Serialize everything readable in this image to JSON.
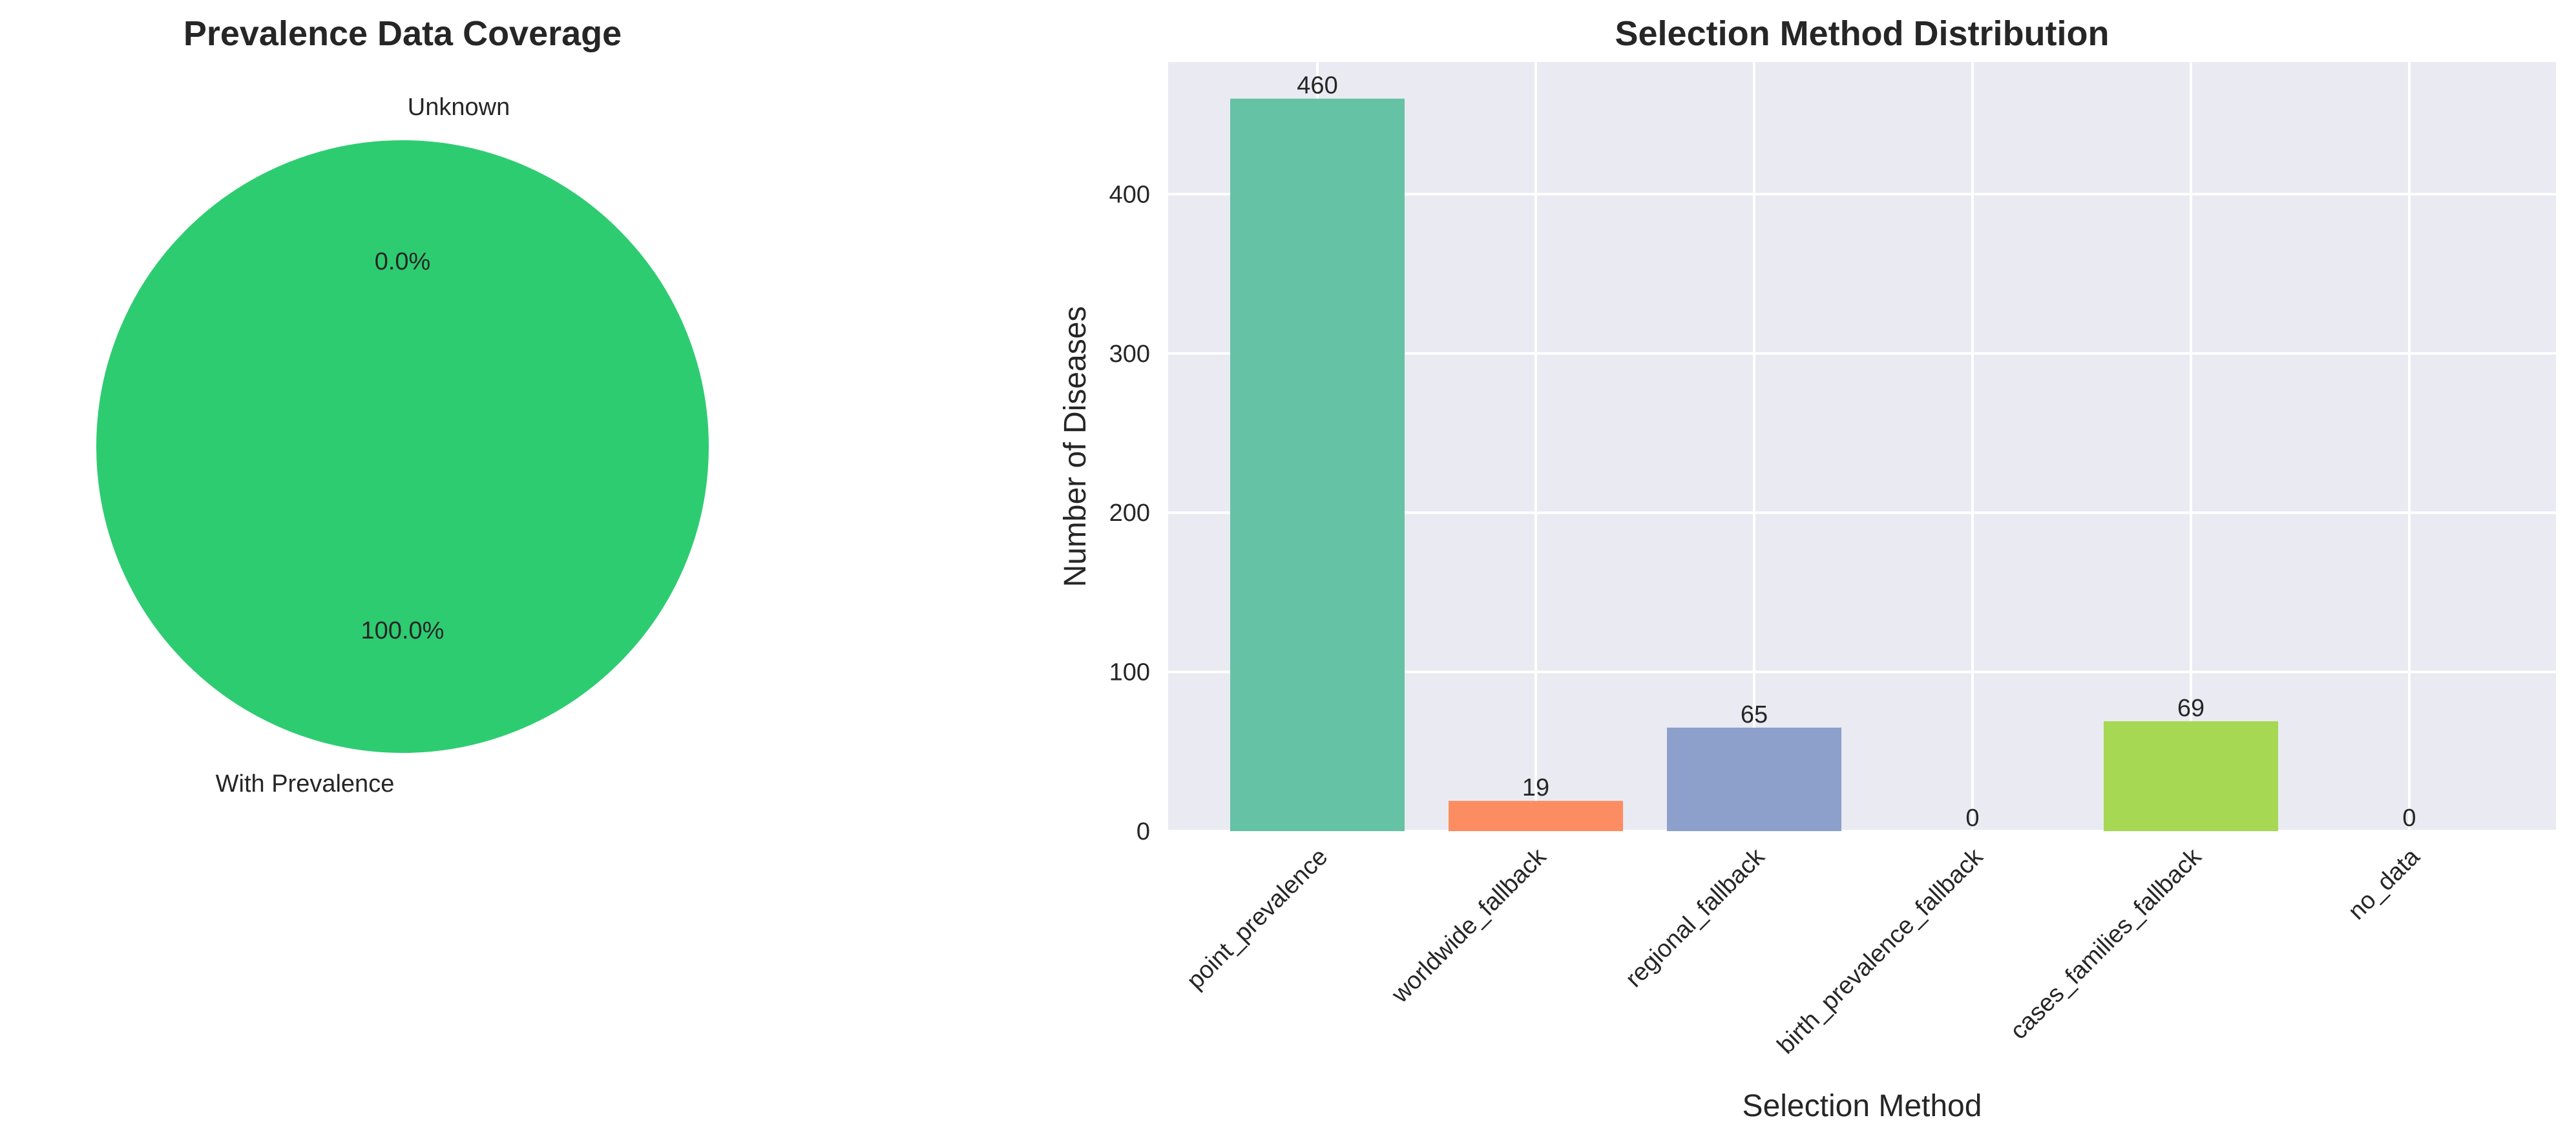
{
  "chart_data": [
    {
      "type": "pie",
      "title": "Prevalence Data Coverage",
      "labels": [
        "With Prevalence",
        "Unknown"
      ],
      "values": [
        100.0,
        0.0
      ],
      "percent_labels": [
        "100.0%",
        "0.0%"
      ],
      "colors": [
        "#2ecc71",
        "#e74c3c"
      ]
    },
    {
      "type": "bar",
      "title": "Selection Method Distribution",
      "xlabel": "Selection Method",
      "ylabel": "Number of Diseases",
      "categories": [
        "point_prevalence",
        "worldwide_fallback",
        "regional_fallback",
        "birth_prevalence_fallback",
        "cases_families_fallback",
        "no_data"
      ],
      "values": [
        460,
        19,
        65,
        0,
        69,
        0
      ],
      "value_labels": [
        "460",
        "19",
        "65",
        "0",
        "69",
        "0"
      ],
      "colors": [
        "#66c2a5",
        "#fc8d62",
        "#8da0cb",
        "#e78ac3",
        "#a6d854",
        "#ffd92f"
      ],
      "ylim": [
        0,
        483
      ],
      "yticks": [
        0,
        100,
        200,
        300,
        400
      ],
      "ytick_labels": [
        "0",
        "100",
        "200",
        "300",
        "400"
      ],
      "grid": true,
      "background": "#eaeaf2"
    }
  ]
}
